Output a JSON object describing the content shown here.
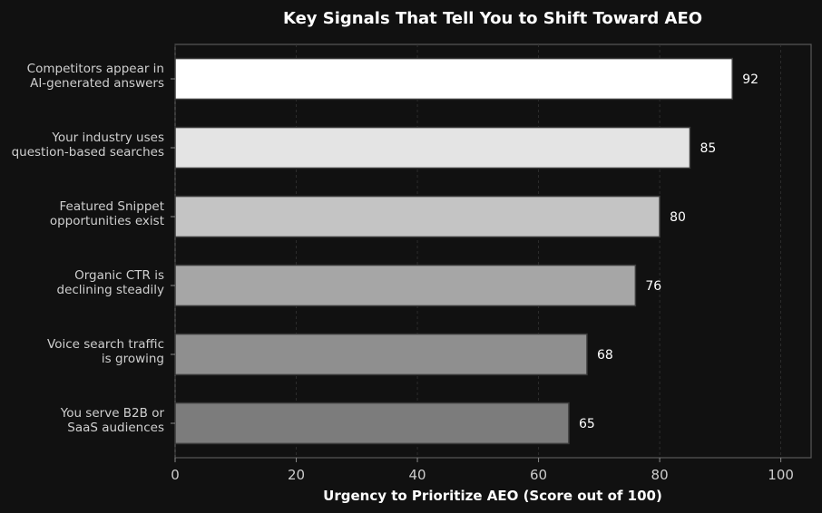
{
  "chart_data": {
    "type": "bar",
    "orientation": "horizontal",
    "title": "Key Signals That Tell You to Shift Toward AEO",
    "xlabel": "Urgency to Prioritize AEO (Score out of 100)",
    "ylabel": "",
    "categories": [
      [
        "Competitors appear in",
        "AI-generated answers"
      ],
      [
        "Your industry uses",
        "question-based searches"
      ],
      [
        "Featured Snippet",
        "opportunities exist"
      ],
      [
        "Organic CTR is",
        "declining steadily"
      ],
      [
        "Voice search traffic",
        "is growing"
      ],
      [
        "You serve B2B or",
        "SaaS audiences"
      ]
    ],
    "values": [
      92,
      85,
      80,
      76,
      68,
      65
    ],
    "value_labels": [
      "92",
      "85",
      "80",
      "76",
      "68",
      "65"
    ],
    "xlim": [
      0,
      105
    ],
    "xticks": [
      0,
      20,
      40,
      60,
      80,
      100
    ],
    "xtick_labels": [
      "0",
      "20",
      "40",
      "60",
      "80",
      "100"
    ],
    "bar_colors": [
      "#ffffff",
      "#e4e4e4",
      "#c4c4c4",
      "#a6a6a6",
      "#8f8f8f",
      "#7c7c7c"
    ],
    "grid": true,
    "legend": "none"
  }
}
